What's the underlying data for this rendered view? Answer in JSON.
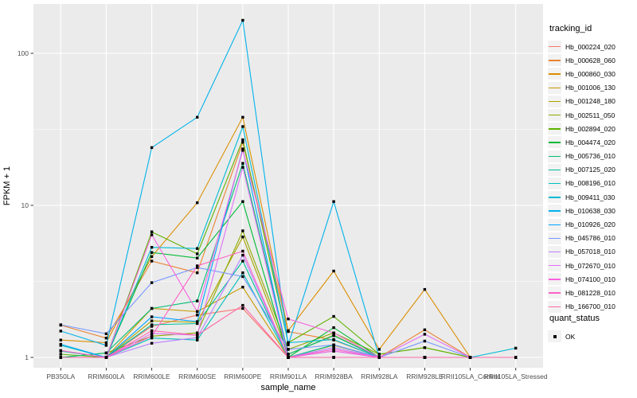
{
  "figure": {
    "x_axis_title": "sample_name",
    "y_axis_title": "FPKM + 1",
    "tracking_legend_title": "tracking_id",
    "quant_legend_title": "quant_status",
    "quant_legend_label": "OK"
  },
  "style_colors": {
    "panel_bg": "#EBEBEB",
    "grid": "#FFFFFF",
    "axis_text": "#4D4D4D",
    "tick_mark": "#333333",
    "point": "#000000",
    "legend_key_bg": "#F2F2F2"
  },
  "chart_data": {
    "type": "line",
    "title": "",
    "xlabel": "sample_name",
    "ylabel": "FPKM + 1",
    "y_scale": "log10",
    "y_major_ticks": [
      1,
      10,
      100
    ],
    "y_minor_ticks": [
      3.162,
      31.62
    ],
    "ylim": [
      0.92,
      210
    ],
    "legend_position": "right",
    "grid": true,
    "point_shape": "small-black-square",
    "quant_status": "OK",
    "categories": [
      "PB350LA",
      "RRIM600LA",
      "RRIM600LE",
      "RRIM600SE",
      "RRIM600PE",
      "RRIM901LA",
      "RRIM928BA",
      "RRIM928LA",
      "RRIM928LE",
      "RRII105LA_Control",
      "RRII105LA_Stressed"
    ],
    "series": [
      {
        "name": "Hb_000224_020",
        "color": "#F8766D",
        "values": [
          1.0,
          1.0,
          1.6,
          1.9,
          2.1,
          1.0,
          1.1,
          1.0,
          1.0,
          1.0,
          1.0
        ]
      },
      {
        "name": "Hb_000628_060",
        "color": "#EA8331",
        "values": [
          1.63,
          1.34,
          4.3,
          3.6,
          26,
          1.48,
          1.3,
          1.0,
          1.52,
          1.0,
          1.0
        ]
      },
      {
        "name": "Hb_000860_030",
        "color": "#DB8E00",
        "values": [
          1.3,
          1.25,
          4.6,
          10.4,
          38,
          1.5,
          3.7,
          1.13,
          2.8,
          1.0,
          1.0
        ]
      },
      {
        "name": "Hb_001006_130",
        "color": "#C79800",
        "values": [
          1.0,
          1.0,
          2.1,
          2.0,
          2.9,
          1.0,
          1.2,
          1.0,
          1.0,
          1.0,
          1.0
        ]
      },
      {
        "name": "Hb_001248_180",
        "color": "#AEA200",
        "values": [
          1.0,
          1.0,
          1.74,
          1.7,
          6.2,
          1.05,
          1.4,
          1.0,
          1.0,
          1.0,
          1.0
        ]
      },
      {
        "name": "Hb_002511_050",
        "color": "#8CAB00",
        "values": [
          1.0,
          1.07,
          1.38,
          1.45,
          6.8,
          1.13,
          1.45,
          1.05,
          1.16,
          1.0,
          1.0
        ]
      },
      {
        "name": "Hb_002894_020",
        "color": "#5EB300",
        "values": [
          1.05,
          1.0,
          6.7,
          4.8,
          27,
          1.25,
          1.86,
          1.05,
          1.16,
          1.0,
          1.0
        ]
      },
      {
        "name": "Hb_004474_020",
        "color": "#00BA38",
        "values": [
          1.0,
          1.0,
          4.9,
          4.5,
          10.6,
          1.0,
          1.57,
          1.0,
          1.0,
          1.0,
          1.0
        ]
      },
      {
        "name": "Hb_005736_010",
        "color": "#00BF74",
        "values": [
          1.0,
          1.07,
          2.1,
          2.35,
          18.9,
          1.05,
          1.39,
          1.0,
          1.0,
          1.0,
          1.0
        ]
      },
      {
        "name": "Hb_007125_020",
        "color": "#00C19C",
        "values": [
          1.1,
          1.0,
          1.64,
          1.67,
          4.3,
          1.0,
          1.21,
          1.0,
          1.0,
          1.0,
          1.0
        ]
      },
      {
        "name": "Hb_008196_010",
        "color": "#00C0BB",
        "values": [
          1.2,
          1.0,
          1.34,
          1.3,
          3.6,
          1.0,
          1.0,
          1.0,
          1.0,
          1.0,
          1.0
        ]
      },
      {
        "name": "Hb_009411_030",
        "color": "#00BBD6",
        "values": [
          1.0,
          1.0,
          5.3,
          5.2,
          33,
          1.25,
          1.31,
          1.0,
          1.0,
          1.0,
          1.15
        ]
      },
      {
        "name": "Hb_010638_030",
        "color": "#00B2EB",
        "values": [
          1.49,
          1.2,
          24,
          38,
          165,
          1.21,
          10.6,
          1.0,
          1.0,
          1.0,
          1.0
        ]
      },
      {
        "name": "Hb_010926_020",
        "color": "#00A5FF",
        "values": [
          1.22,
          1.0,
          1.85,
          1.72,
          23.5,
          1.0,
          1.0,
          1.0,
          1.0,
          1.0,
          1.0
        ]
      },
      {
        "name": "Hb_045786_010",
        "color": "#7997FF",
        "values": [
          1.64,
          1.43,
          3.1,
          3.9,
          3.4,
          1.13,
          1.21,
          1.0,
          1.28,
          1.0,
          1.0
        ]
      },
      {
        "name": "Hb_057018_010",
        "color": "#BC81FF",
        "values": [
          1.0,
          1.0,
          1.24,
          1.35,
          4.7,
          1.0,
          1.16,
          1.0,
          1.0,
          1.0,
          1.0
        ]
      },
      {
        "name": "Hb_072670_010",
        "color": "#E26EF7",
        "values": [
          1.0,
          1.0,
          1.44,
          1.4,
          17.8,
          1.0,
          1.1,
          1.0,
          1.42,
          1.0,
          1.0
        ]
      },
      {
        "name": "Hb_074100_010",
        "color": "#F863DF",
        "values": [
          1.0,
          1.0,
          6.4,
          2.0,
          23,
          1.79,
          1.45,
          1.0,
          1.0,
          1.0,
          1.0
        ]
      },
      {
        "name": "Hb_081228_010",
        "color": "#FF61C7",
        "values": [
          1.11,
          1.0,
          1.38,
          4.0,
          5.0,
          1.0,
          1.13,
          1.0,
          1.0,
          1.0,
          1.0
        ]
      },
      {
        "name": "Hb_166700_010",
        "color": "#FF68A8",
        "values": [
          1.0,
          1.0,
          1.5,
          1.4,
          2.2,
          1.0,
          1.0,
          1.0,
          1.0,
          1.0,
          1.0
        ]
      }
    ]
  }
}
